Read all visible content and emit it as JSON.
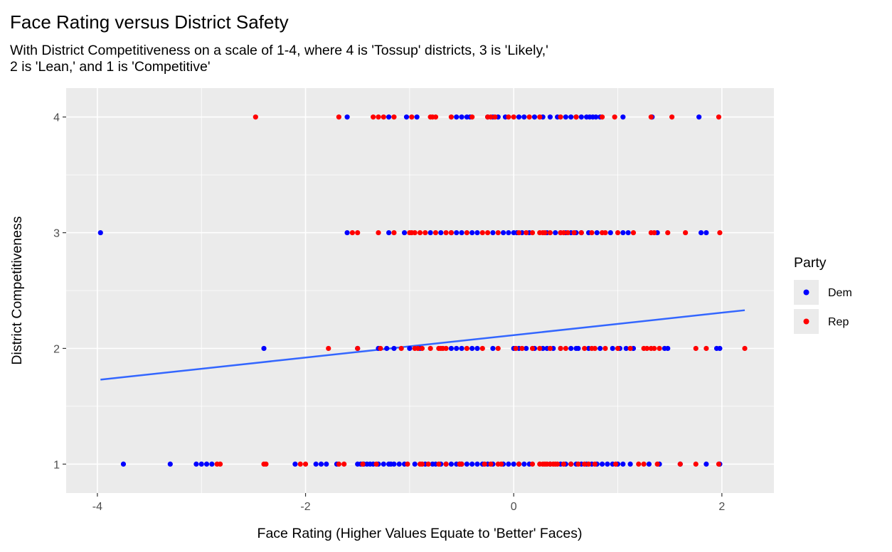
{
  "chart_data": {
    "type": "scatter",
    "title": "Face Rating versus District Safety",
    "subtitle_lines": [
      "With District Competitiveness on a scale of 1-4, where 4 is 'Tossup' districts, 3 is 'Likely,'",
      "2 is 'Lean,' and 1 is 'Competitive'"
    ],
    "xlabel": "Face Rating (Higher Values Equate to 'Better' Faces)",
    "ylabel": "District Competitiveness",
    "xlim": [
      -4.3,
      2.5
    ],
    "ylim": [
      0.75,
      4.25
    ],
    "x_ticks": [
      -4,
      -2,
      0,
      2
    ],
    "x_tick_labels": [
      "-4",
      "-2",
      "0",
      "2"
    ],
    "x_minor_ticks": [
      -3,
      -1,
      1
    ],
    "y_ticks": [
      1,
      2,
      3,
      4
    ],
    "y_tick_labels": [
      "1",
      "2",
      "3",
      "4"
    ],
    "y_minor_ticks": [
      1.5,
      2.5,
      3.5
    ],
    "grid": true,
    "legend": {
      "title": "Party",
      "position": "right"
    },
    "series": [
      {
        "name": "Dem",
        "color": "#0000ff",
        "points": [
          [
            -1.6,
            4
          ],
          [
            -1.2,
            4
          ],
          [
            -1.03,
            4
          ],
          [
            -0.93,
            4
          ],
          [
            -0.55,
            4
          ],
          [
            -0.5,
            4
          ],
          [
            -0.45,
            4
          ],
          [
            -0.42,
            4
          ],
          [
            -0.25,
            4
          ],
          [
            -0.2,
            4
          ],
          [
            -0.15,
            4
          ],
          [
            -0.08,
            4
          ],
          [
            0.05,
            4
          ],
          [
            0.1,
            4
          ],
          [
            0.2,
            4
          ],
          [
            0.28,
            4
          ],
          [
            0.35,
            4
          ],
          [
            0.42,
            4
          ],
          [
            0.5,
            4
          ],
          [
            0.55,
            4
          ],
          [
            0.6,
            4
          ],
          [
            0.65,
            4
          ],
          [
            0.7,
            4
          ],
          [
            0.73,
            4
          ],
          [
            0.76,
            4
          ],
          [
            0.79,
            4
          ],
          [
            0.83,
            4
          ],
          [
            1.05,
            4
          ],
          [
            1.33,
            4
          ],
          [
            1.78,
            4
          ],
          [
            -3.97,
            3
          ],
          [
            -1.6,
            3
          ],
          [
            -1.2,
            3
          ],
          [
            -1.05,
            3
          ],
          [
            -0.8,
            3
          ],
          [
            -0.7,
            3
          ],
          [
            -0.6,
            3
          ],
          [
            -0.55,
            3
          ],
          [
            -0.5,
            3
          ],
          [
            -0.4,
            3
          ],
          [
            -0.35,
            3
          ],
          [
            -0.2,
            3
          ],
          [
            -0.1,
            3
          ],
          [
            -0.05,
            3
          ],
          [
            0.0,
            3
          ],
          [
            0.03,
            3
          ],
          [
            0.08,
            3
          ],
          [
            0.15,
            3
          ],
          [
            0.32,
            3
          ],
          [
            0.4,
            3
          ],
          [
            0.45,
            3
          ],
          [
            0.5,
            3
          ],
          [
            0.55,
            3
          ],
          [
            0.6,
            3
          ],
          [
            0.65,
            3
          ],
          [
            0.72,
            3
          ],
          [
            0.8,
            3
          ],
          [
            0.93,
            3
          ],
          [
            1.05,
            3
          ],
          [
            1.1,
            3
          ],
          [
            1.38,
            3
          ],
          [
            1.8,
            3
          ],
          [
            1.85,
            3
          ],
          [
            -2.4,
            2
          ],
          [
            -1.5,
            2
          ],
          [
            -1.3,
            2
          ],
          [
            -1.22,
            2
          ],
          [
            -1.15,
            2
          ],
          [
            -1.0,
            2
          ],
          [
            -0.9,
            2
          ],
          [
            -0.6,
            2
          ],
          [
            -0.55,
            2
          ],
          [
            -0.5,
            2
          ],
          [
            -0.4,
            2
          ],
          [
            -0.35,
            2
          ],
          [
            -0.2,
            2
          ],
          [
            0.0,
            2
          ],
          [
            0.05,
            2
          ],
          [
            0.12,
            2
          ],
          [
            0.2,
            2
          ],
          [
            0.28,
            2
          ],
          [
            0.32,
            2
          ],
          [
            0.38,
            2
          ],
          [
            0.45,
            2
          ],
          [
            0.55,
            2
          ],
          [
            0.6,
            2
          ],
          [
            0.62,
            2
          ],
          [
            0.72,
            2
          ],
          [
            0.83,
            2
          ],
          [
            0.95,
            2
          ],
          [
            1.02,
            2
          ],
          [
            1.08,
            2
          ],
          [
            1.15,
            2
          ],
          [
            1.45,
            2
          ],
          [
            1.48,
            2
          ],
          [
            1.95,
            2
          ],
          [
            1.98,
            2
          ],
          [
            -3.75,
            1
          ],
          [
            -3.3,
            1
          ],
          [
            -3.05,
            1
          ],
          [
            -3.0,
            1
          ],
          [
            -2.95,
            1
          ],
          [
            -2.9,
            1
          ],
          [
            -2.1,
            1
          ],
          [
            -1.9,
            1
          ],
          [
            -1.85,
            1
          ],
          [
            -1.8,
            1
          ],
          [
            -1.7,
            1
          ],
          [
            -1.5,
            1
          ],
          [
            -1.47,
            1
          ],
          [
            -1.44,
            1
          ],
          [
            -1.41,
            1
          ],
          [
            -1.38,
            1
          ],
          [
            -1.35,
            1
          ],
          [
            -1.3,
            1
          ],
          [
            -1.25,
            1
          ],
          [
            -1.2,
            1
          ],
          [
            -1.18,
            1
          ],
          [
            -1.15,
            1
          ],
          [
            -1.1,
            1
          ],
          [
            -1.05,
            1
          ],
          [
            -0.95,
            1
          ],
          [
            -0.85,
            1
          ],
          [
            -0.78,
            1
          ],
          [
            -0.75,
            1
          ],
          [
            -0.7,
            1
          ],
          [
            -0.65,
            1
          ],
          [
            -0.6,
            1
          ],
          [
            -0.55,
            1
          ],
          [
            -0.52,
            1
          ],
          [
            -0.5,
            1
          ],
          [
            -0.45,
            1
          ],
          [
            -0.4,
            1
          ],
          [
            -0.35,
            1
          ],
          [
            -0.3,
            1
          ],
          [
            -0.25,
            1
          ],
          [
            -0.2,
            1
          ],
          [
            -0.1,
            1
          ],
          [
            -0.05,
            1
          ],
          [
            0.0,
            1
          ],
          [
            0.05,
            1
          ],
          [
            0.1,
            1
          ],
          [
            0.15,
            1
          ],
          [
            0.35,
            1
          ],
          [
            0.45,
            1
          ],
          [
            0.5,
            1
          ],
          [
            0.55,
            1
          ],
          [
            0.6,
            1
          ],
          [
            0.65,
            1
          ],
          [
            0.7,
            1
          ],
          [
            0.75,
            1
          ],
          [
            0.8,
            1
          ],
          [
            0.85,
            1
          ],
          [
            0.9,
            1
          ],
          [
            0.95,
            1
          ],
          [
            1.0,
            1
          ],
          [
            1.05,
            1
          ],
          [
            1.12,
            1
          ],
          [
            1.3,
            1
          ],
          [
            1.4,
            1
          ],
          [
            1.6,
            1
          ],
          [
            1.85,
            1
          ],
          [
            1.98,
            1
          ]
        ]
      },
      {
        "name": "Rep",
        "color": "#ff0000",
        "points": [
          [
            -2.48,
            4
          ],
          [
            -1.68,
            4
          ],
          [
            -1.35,
            4
          ],
          [
            -1.3,
            4
          ],
          [
            -1.25,
            4
          ],
          [
            -1.15,
            4
          ],
          [
            -0.98,
            4
          ],
          [
            -0.8,
            4
          ],
          [
            -0.78,
            4
          ],
          [
            -0.75,
            4
          ],
          [
            -0.6,
            4
          ],
          [
            -0.4,
            4
          ],
          [
            -0.25,
            4
          ],
          [
            -0.22,
            4
          ],
          [
            -0.18,
            4
          ],
          [
            -0.05,
            4
          ],
          [
            0.0,
            4
          ],
          [
            0.15,
            4
          ],
          [
            0.25,
            4
          ],
          [
            0.45,
            4
          ],
          [
            0.6,
            4
          ],
          [
            0.85,
            4
          ],
          [
            0.97,
            4
          ],
          [
            1.32,
            4
          ],
          [
            1.52,
            4
          ],
          [
            1.97,
            4
          ],
          [
            -1.55,
            3
          ],
          [
            -1.5,
            3
          ],
          [
            -1.3,
            3
          ],
          [
            -1.15,
            3
          ],
          [
            -1.0,
            3
          ],
          [
            -0.98,
            3
          ],
          [
            -0.95,
            3
          ],
          [
            -0.9,
            3
          ],
          [
            -0.85,
            3
          ],
          [
            -0.75,
            3
          ],
          [
            -0.65,
            3
          ],
          [
            -0.6,
            3
          ],
          [
            -0.45,
            3
          ],
          [
            -0.3,
            3
          ],
          [
            -0.25,
            3
          ],
          [
            -0.15,
            3
          ],
          [
            0.05,
            3
          ],
          [
            0.12,
            3
          ],
          [
            0.18,
            3
          ],
          [
            0.25,
            3
          ],
          [
            0.28,
            3
          ],
          [
            0.3,
            3
          ],
          [
            0.35,
            3
          ],
          [
            0.45,
            3
          ],
          [
            0.48,
            3
          ],
          [
            0.52,
            3
          ],
          [
            0.58,
            3
          ],
          [
            0.65,
            3
          ],
          [
            0.75,
            3
          ],
          [
            0.85,
            3
          ],
          [
            0.88,
            3
          ],
          [
            1.0,
            3
          ],
          [
            1.15,
            3
          ],
          [
            1.32,
            3
          ],
          [
            1.35,
            3
          ],
          [
            1.48,
            3
          ],
          [
            1.65,
            3
          ],
          [
            1.98,
            3
          ],
          [
            -1.78,
            2
          ],
          [
            -1.5,
            2
          ],
          [
            -1.28,
            2
          ],
          [
            -1.08,
            2
          ],
          [
            -0.95,
            2
          ],
          [
            -0.92,
            2
          ],
          [
            -0.88,
            2
          ],
          [
            -0.8,
            2
          ],
          [
            -0.72,
            2
          ],
          [
            -0.7,
            2
          ],
          [
            -0.68,
            2
          ],
          [
            -0.65,
            2
          ],
          [
            -0.45,
            2
          ],
          [
            -0.3,
            2
          ],
          [
            -0.15,
            2
          ],
          [
            0.02,
            2
          ],
          [
            0.08,
            2
          ],
          [
            0.18,
            2
          ],
          [
            0.25,
            2
          ],
          [
            0.35,
            2
          ],
          [
            0.45,
            2
          ],
          [
            0.5,
            2
          ],
          [
            0.68,
            2
          ],
          [
            0.75,
            2
          ],
          [
            0.78,
            2
          ],
          [
            0.88,
            2
          ],
          [
            1.0,
            2
          ],
          [
            1.12,
            2
          ],
          [
            1.25,
            2
          ],
          [
            1.28,
            2
          ],
          [
            1.32,
            2
          ],
          [
            1.35,
            2
          ],
          [
            1.4,
            2
          ],
          [
            1.75,
            2
          ],
          [
            1.85,
            2
          ],
          [
            2.22,
            2
          ],
          [
            -2.85,
            1
          ],
          [
            -2.82,
            1
          ],
          [
            -2.4,
            1
          ],
          [
            -2.38,
            1
          ],
          [
            -2.05,
            1
          ],
          [
            -2.0,
            1
          ],
          [
            -1.68,
            1
          ],
          [
            -1.63,
            1
          ],
          [
            -1.45,
            1
          ],
          [
            -1.32,
            1
          ],
          [
            -1.02,
            1
          ],
          [
            -0.9,
            1
          ],
          [
            -0.88,
            1
          ],
          [
            -0.82,
            1
          ],
          [
            -0.72,
            1
          ],
          [
            -0.65,
            1
          ],
          [
            -0.52,
            1
          ],
          [
            -0.5,
            1
          ],
          [
            -0.28,
            1
          ],
          [
            -0.22,
            1
          ],
          [
            -0.15,
            1
          ],
          [
            -0.12,
            1
          ],
          [
            0.05,
            1
          ],
          [
            0.18,
            1
          ],
          [
            0.25,
            1
          ],
          [
            0.28,
            1
          ],
          [
            0.3,
            1
          ],
          [
            0.32,
            1
          ],
          [
            0.35,
            1
          ],
          [
            0.38,
            1
          ],
          [
            0.4,
            1
          ],
          [
            0.42,
            1
          ],
          [
            0.48,
            1
          ],
          [
            0.55,
            1
          ],
          [
            0.62,
            1
          ],
          [
            0.68,
            1
          ],
          [
            0.72,
            1
          ],
          [
            0.78,
            1
          ],
          [
            0.98,
            1
          ],
          [
            1.2,
            1
          ],
          [
            1.25,
            1
          ],
          [
            1.38,
            1
          ],
          [
            1.6,
            1
          ],
          [
            1.75,
            1
          ],
          [
            1.97,
            1
          ]
        ]
      }
    ],
    "trend_line": {
      "color": "#3366ff",
      "x": [
        -3.97,
        2.22
      ],
      "y": [
        1.73,
        2.33
      ]
    }
  }
}
